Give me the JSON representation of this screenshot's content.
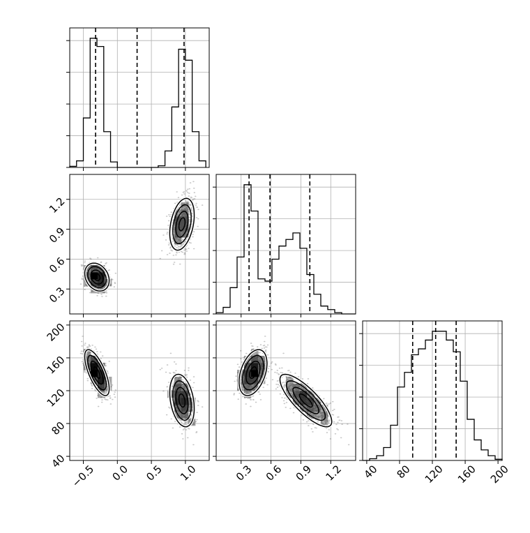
{
  "chart_data": {
    "type": "corner",
    "grid": true,
    "variables": [
      {
        "ticks": [
          -0.5,
          0.0,
          0.5,
          1.0
        ],
        "tick_labels": [
          "−0.5",
          "0.0",
          "0.5",
          "1.0"
        ],
        "range": [
          -0.7,
          1.35
        ]
      },
      {
        "ticks": [
          0.3,
          0.6,
          0.9,
          1.2
        ],
        "tick_labels": [
          "0.3",
          "0.6",
          "0.9",
          "1.2"
        ],
        "range": [
          0.05,
          1.45
        ]
      },
      {
        "ticks": [
          40,
          80,
          120,
          160,
          200
        ],
        "tick_labels": [
          "40",
          "80",
          "120",
          "160",
          "200"
        ],
        "range": [
          35,
          205
        ]
      }
    ],
    "histograms": [
      {
        "variable": 0,
        "bin_edges": [
          -0.7,
          -0.6,
          -0.5,
          -0.4,
          -0.3,
          -0.2,
          -0.1,
          0.0,
          0.1,
          0.2,
          0.3,
          0.4,
          0.5,
          0.6,
          0.7,
          0.8,
          0.9,
          1.0,
          1.1,
          1.2,
          1.3
        ],
        "counts": [
          2,
          12,
          90,
          235,
          220,
          65,
          10,
          0,
          0,
          0,
          0,
          0,
          0,
          3,
          30,
          110,
          215,
          195,
          65,
          12
        ],
        "quantile_lines": [
          -0.32,
          0.29,
          0.98
        ]
      },
      {
        "variable": 1,
        "bin_edges": [
          0.05,
          0.12,
          0.19,
          0.26,
          0.33,
          0.4,
          0.47,
          0.54,
          0.61,
          0.68,
          0.75,
          0.82,
          0.89,
          0.96,
          1.03,
          1.1,
          1.17,
          1.24,
          1.31,
          1.38,
          1.45
        ],
        "counts": [
          3,
          15,
          60,
          130,
          295,
          235,
          80,
          75,
          125,
          155,
          170,
          185,
          150,
          90,
          45,
          18,
          10,
          3,
          0,
          0
        ],
        "quantile_lines": [
          0.38,
          0.59,
          0.99
        ]
      },
      {
        "variable": 2,
        "bin_edges": [
          35,
          43.5,
          52,
          60.5,
          69,
          77.5,
          86,
          94.5,
          103,
          111.5,
          120,
          128.5,
          137,
          145.5,
          154,
          162.5,
          171,
          179.5,
          188,
          196.5,
          205
        ],
        "counts": [
          0,
          3,
          8,
          22,
          60,
          125,
          150,
          180,
          190,
          205,
          220,
          220,
          205,
          185,
          135,
          70,
          35,
          18,
          8,
          2
        ],
        "quantile_lines": [
          96,
          124,
          149
        ]
      }
    ],
    "clusters": [
      {
        "mean": [
          -0.3,
          0.42,
          142
        ],
        "sd": [
          0.09,
          0.07,
          14
        ],
        "corr": {
          "01": -0.25,
          "02": -0.7,
          "12": 0.4
        },
        "weight": 0.5
      },
      {
        "mean": [
          0.95,
          0.95,
          108
        ],
        "sd": [
          0.09,
          0.13,
          16
        ],
        "corr": {
          "01": 0.35,
          "02": -0.3,
          "12": -0.8
        },
        "weight": 0.5
      }
    ]
  }
}
